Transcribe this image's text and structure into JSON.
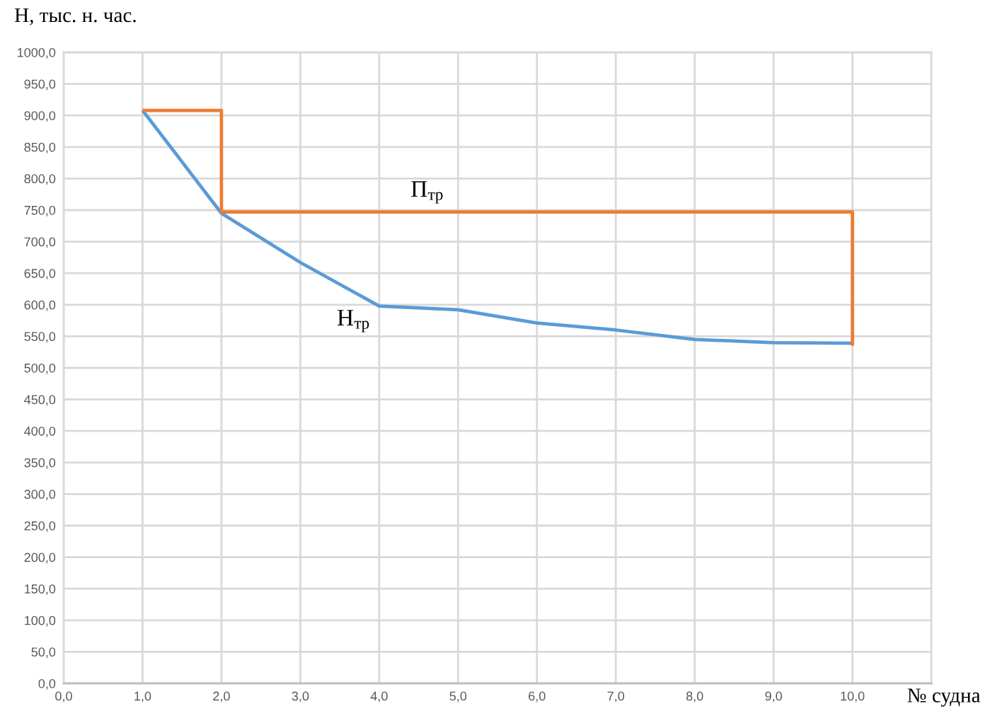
{
  "chart_data": {
    "type": "line",
    "xlabel": "№ судна",
    "ylabel": "Н, тыс. н. час.",
    "xlim": [
      0,
      11
    ],
    "xticks": [
      {
        "value": 0,
        "label": "0,0"
      },
      {
        "value": 1,
        "label": "1,0"
      },
      {
        "value": 2,
        "label": "2,0"
      },
      {
        "value": 3,
        "label": "3,0"
      },
      {
        "value": 4,
        "label": "4,0"
      },
      {
        "value": 5,
        "label": "5,0"
      },
      {
        "value": 6,
        "label": "6,0"
      },
      {
        "value": 7,
        "label": "7,0"
      },
      {
        "value": 8,
        "label": "8,0"
      },
      {
        "value": 9,
        "label": "9,0"
      },
      {
        "value": 10,
        "label": "10,0"
      }
    ],
    "ylim": [
      0,
      1000
    ],
    "yticks": [
      {
        "value": 0,
        "label": "0,0"
      },
      {
        "value": 50,
        "label": "50,0"
      },
      {
        "value": 100,
        "label": "100,0"
      },
      {
        "value": 150,
        "label": "150,0"
      },
      {
        "value": 200,
        "label": "200,0"
      },
      {
        "value": 250,
        "label": "250,0"
      },
      {
        "value": 300,
        "label": "300,0"
      },
      {
        "value": 350,
        "label": "350,0"
      },
      {
        "value": 400,
        "label": "400,0"
      },
      {
        "value": 450,
        "label": "450,0"
      },
      {
        "value": 500,
        "label": "500,0"
      },
      {
        "value": 550,
        "label": "550,0"
      },
      {
        "value": 600,
        "label": "600,0"
      },
      {
        "value": 650,
        "label": "650,0"
      },
      {
        "value": 700,
        "label": "700,0"
      },
      {
        "value": 750,
        "label": "750,0"
      },
      {
        "value": 800,
        "label": "800,0"
      },
      {
        "value": 850,
        "label": "850,0"
      },
      {
        "value": 900,
        "label": "900,0"
      },
      {
        "value": 950,
        "label": "950,0"
      },
      {
        "value": 1000,
        "label": "1000,0"
      }
    ],
    "grid": true,
    "series": [
      {
        "name": "Н$_{тр}$",
        "color": "#5b9bd5",
        "x": [
          1,
          2,
          3,
          4,
          5,
          6,
          7,
          8,
          9,
          10
        ],
        "values": [
          908,
          745,
          667,
          598,
          592,
          571,
          560,
          545,
          540,
          539
        ]
      },
      {
        "name": "П$_{тр}$",
        "color": "#ed7d31",
        "x": [
          1,
          2,
          2,
          10,
          10
        ],
        "values": [
          908,
          908,
          747,
          747,
          535
        ]
      }
    ]
  }
}
